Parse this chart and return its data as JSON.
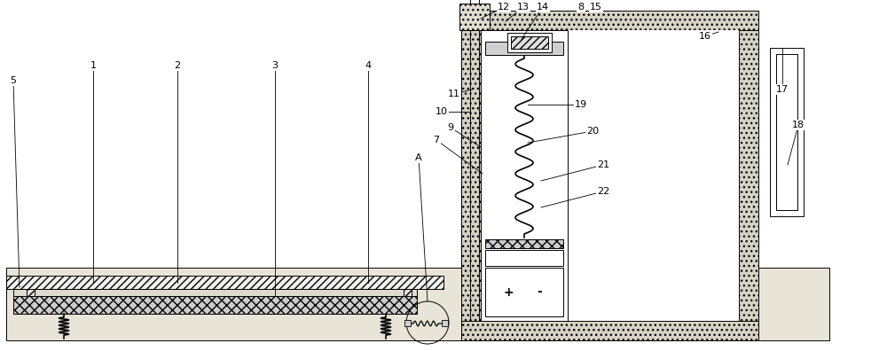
{
  "bg_color": "#ffffff",
  "line_color": "#000000",
  "fig_width": 10.0,
  "fig_height": 3.96
}
